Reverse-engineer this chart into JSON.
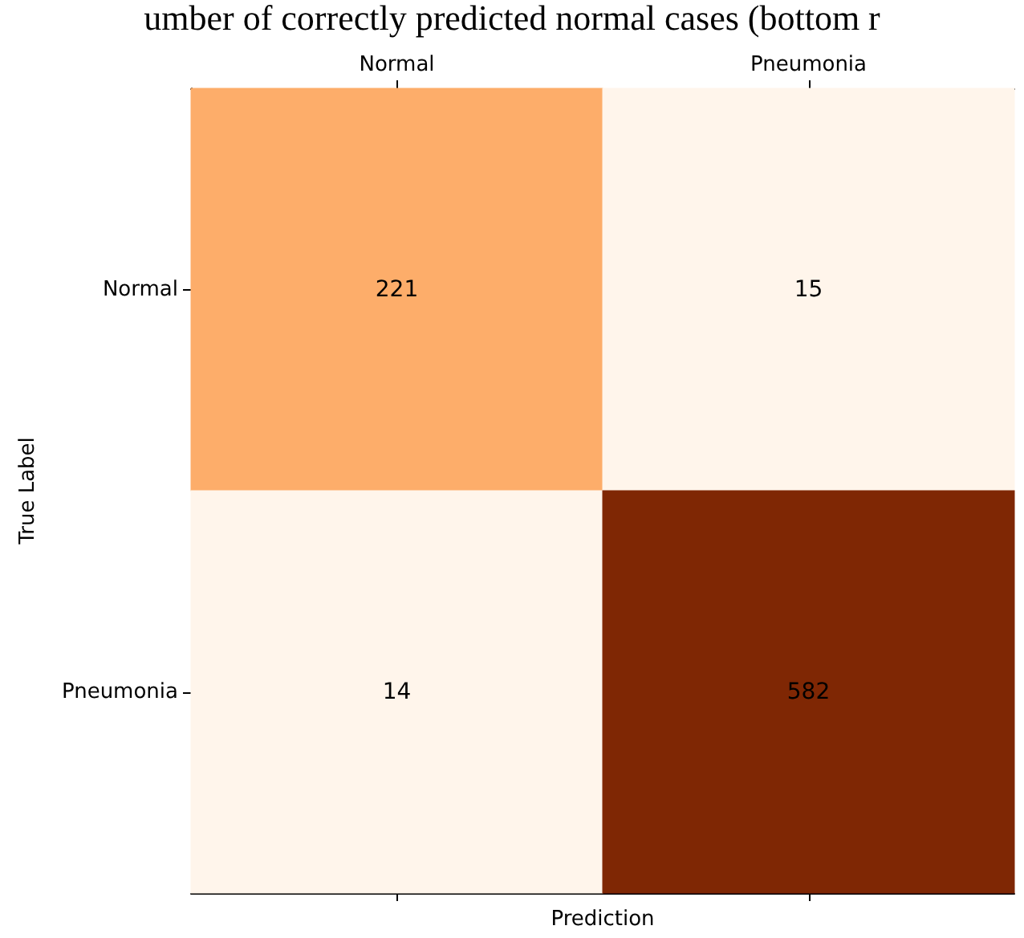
{
  "chart_data": {
    "type": "heatmap",
    "xlabel": "Prediction",
    "ylabel": "True Label",
    "annotations": [
      "umber of correctly predicted normal cases (bottom r"
    ],
    "categories": [
      "Normal",
      "Pneumonia"
    ],
    "y_categories": [
      "Normal",
      "Pneumonia"
    ],
    "cells": [
      [
        221,
        15
      ],
      [
        14,
        582
      ]
    ],
    "colors": [
      "#fdad6a",
      "#fff5eb",
      "#fff5eb",
      "#7f2704"
    ],
    "data_labels": true
  }
}
